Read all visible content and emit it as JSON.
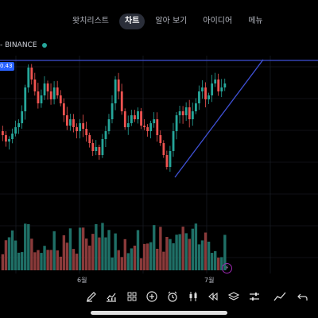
{
  "nav": {
    "tabs": [
      {
        "label": "왓치리스트",
        "active": false
      },
      {
        "label": "차트",
        "active": true
      },
      {
        "label": "알아 보기",
        "active": false
      },
      {
        "label": "아이디어",
        "active": false
      },
      {
        "label": "메뉴",
        "active": false
      }
    ]
  },
  "symbol": {
    "text": "- BINANCE",
    "status_color": "#26a69a"
  },
  "price_tag": "0.43",
  "x_axis": {
    "labels": [
      "6월",
      "7월"
    ]
  },
  "colors": {
    "up": "#26a69a",
    "down": "#ef5350",
    "drawing": "#3f51d6",
    "grid": "#1e222d"
  },
  "toolbar": {
    "tools": [
      "pencil-icon",
      "chart-type-icon",
      "indicators-icon",
      "add-icon",
      "alarm-icon",
      "candles-icon",
      "replay-icon",
      "layers-icon",
      "settings-sliders-icon",
      "trend-icon",
      "undo-icon"
    ]
  }
}
